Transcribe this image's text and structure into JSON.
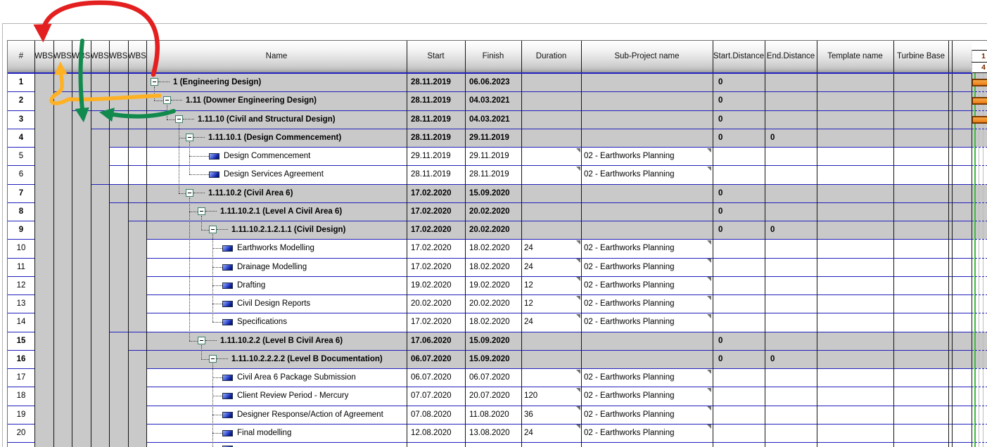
{
  "table": {
    "columns": [
      {
        "key": "num",
        "label": "#"
      },
      {
        "key": "wbs1",
        "label": "WBS"
      },
      {
        "key": "wbs2",
        "label": "WBS"
      },
      {
        "key": "wbs3",
        "label": "WBS"
      },
      {
        "key": "wbs4",
        "label": "WBS"
      },
      {
        "key": "wbs5",
        "label": "WBS"
      },
      {
        "key": "wbs6",
        "label": "WBS"
      },
      {
        "key": "name",
        "label": "Name"
      },
      {
        "key": "start",
        "label": "Start"
      },
      {
        "key": "finish",
        "label": "Finish"
      },
      {
        "key": "duration",
        "label": "Duration"
      },
      {
        "key": "subproject",
        "label": "Sub-Project name"
      },
      {
        "key": "start_distance",
        "label": "Start.Distance"
      },
      {
        "key": "end_distance",
        "label": "End.Distance"
      },
      {
        "key": "template_name",
        "label": "Template name"
      },
      {
        "key": "turbine_base",
        "label": "Turbine Base"
      },
      {
        "key": "gap1",
        "label": ""
      },
      {
        "key": "gap2",
        "label": ""
      }
    ],
    "rows": [
      {
        "num": "1",
        "type": "summary",
        "level": 1,
        "name": "1 (Engineering Design)",
        "start": "28.11.2019",
        "finish": "06.06.2023",
        "duration": "",
        "subproject": "",
        "start_distance": "0",
        "end_distance": "",
        "bar": true,
        "notes": false
      },
      {
        "num": "2",
        "type": "summary",
        "level": 2,
        "name": "1.11 (Downer Engineering Design)",
        "start": "28.11.2019",
        "finish": "04.03.2021",
        "duration": "",
        "subproject": "",
        "start_distance": "0",
        "end_distance": "",
        "bar": true,
        "notes": false
      },
      {
        "num": "3",
        "type": "summary",
        "level": 3,
        "name": "1.11.10 (Civil and Structural Design)",
        "start": "28.11.2019",
        "finish": "04.03.2021",
        "duration": "",
        "subproject": "",
        "start_distance": "0",
        "end_distance": "",
        "bar": true,
        "notes": false
      },
      {
        "num": "4",
        "type": "summary",
        "level": 4,
        "name": "1.11.10.1 (Design Commencement)",
        "start": "28.11.2019",
        "finish": "29.11.2019",
        "duration": "",
        "subproject": "",
        "start_distance": "0",
        "end_distance": "0",
        "bar": false,
        "notes": false
      },
      {
        "num": "5",
        "type": "task",
        "level": 5,
        "name": "Design Commencement",
        "start": "29.11.2019",
        "finish": "29.11.2019",
        "duration": "",
        "subproject": "02 - Earthworks Planning",
        "start_distance": "",
        "end_distance": "",
        "bar": false,
        "notes": true
      },
      {
        "num": "6",
        "type": "task",
        "level": 5,
        "name": "Design Services Agreement",
        "start": "28.11.2019",
        "finish": "28.11.2019",
        "duration": "",
        "subproject": "02 - Earthworks Planning",
        "start_distance": "",
        "end_distance": "",
        "bar": false,
        "notes": true
      },
      {
        "num": "7",
        "type": "summary",
        "level": 4,
        "name": "1.11.10.2 (Civil Area 6)",
        "start": "17.02.2020",
        "finish": "15.09.2020",
        "duration": "",
        "subproject": "",
        "start_distance": "0",
        "end_distance": "",
        "bar": false,
        "notes": false
      },
      {
        "num": "8",
        "type": "summary",
        "level": 5,
        "name": "1.11.10.2.1 (Level A Civil Area 6)",
        "start": "17.02.2020",
        "finish": "20.02.2020",
        "duration": "",
        "subproject": "",
        "start_distance": "0",
        "end_distance": "",
        "bar": false,
        "notes": false
      },
      {
        "num": "9",
        "type": "summary",
        "level": 6,
        "name": "1.11.10.2.1.2.1.1 (Civil Design)",
        "start": "17.02.2020",
        "finish": "20.02.2020",
        "duration": "",
        "subproject": "",
        "start_distance": "0",
        "end_distance": "0",
        "bar": false,
        "notes": false
      },
      {
        "num": "10",
        "type": "task",
        "level": 7,
        "name": "Earthworks Modelling",
        "start": "17.02.2020",
        "finish": "18.02.2020",
        "duration": "24",
        "subproject": "02 - Earthworks Planning",
        "start_distance": "",
        "end_distance": "",
        "bar": false,
        "notes": true
      },
      {
        "num": "11",
        "type": "task",
        "level": 7,
        "name": "Drainage Modelling",
        "start": "17.02.2020",
        "finish": "18.02.2020",
        "duration": "24",
        "subproject": "02 - Earthworks Planning",
        "start_distance": "",
        "end_distance": "",
        "bar": false,
        "notes": true
      },
      {
        "num": "12",
        "type": "task",
        "level": 7,
        "name": "Drafting",
        "start": "19.02.2020",
        "finish": "19.02.2020",
        "duration": "12",
        "subproject": "02 - Earthworks Planning",
        "start_distance": "",
        "end_distance": "",
        "bar": false,
        "notes": true
      },
      {
        "num": "13",
        "type": "task",
        "level": 7,
        "name": "Civil Design Reports",
        "start": "20.02.2020",
        "finish": "20.02.2020",
        "duration": "12",
        "subproject": "02 - Earthworks Planning",
        "start_distance": "",
        "end_distance": "",
        "bar": false,
        "notes": true
      },
      {
        "num": "14",
        "type": "task",
        "level": 7,
        "name": "Specifications",
        "start": "17.02.2020",
        "finish": "18.02.2020",
        "duration": "24",
        "subproject": "02 - Earthworks Planning",
        "start_distance": "",
        "end_distance": "",
        "bar": false,
        "notes": true
      },
      {
        "num": "15",
        "type": "summary",
        "level": 5,
        "name": "1.11.10.2.2 (Level B Civil Area 6)",
        "start": "17.06.2020",
        "finish": "15.09.2020",
        "duration": "",
        "subproject": "",
        "start_distance": "0",
        "end_distance": "",
        "bar": false,
        "notes": false
      },
      {
        "num": "16",
        "type": "summary",
        "level": 6,
        "name": "1.11.10.2.2.2.2 (Level B Documentation)",
        "start": "06.07.2020",
        "finish": "15.09.2020",
        "duration": "",
        "subproject": "",
        "start_distance": "0",
        "end_distance": "0",
        "bar": false,
        "notes": false
      },
      {
        "num": "17",
        "type": "task",
        "level": 7,
        "name": "Civil Area 6 Package Submission",
        "start": "06.07.2020",
        "finish": "06.07.2020",
        "duration": "",
        "subproject": "02 - Earthworks Planning",
        "start_distance": "",
        "end_distance": "",
        "bar": false,
        "notes": true
      },
      {
        "num": "18",
        "type": "task",
        "level": 7,
        "name": "Client Review Period - Mercury",
        "start": "07.07.2020",
        "finish": "20.07.2020",
        "duration": "120",
        "subproject": "02 - Earthworks Planning",
        "start_distance": "",
        "end_distance": "",
        "bar": false,
        "notes": true
      },
      {
        "num": "19",
        "type": "task",
        "level": 7,
        "name": "Designer Response/Action of Agreement",
        "start": "07.08.2020",
        "finish": "11.08.2020",
        "duration": "36",
        "subproject": "02 - Earthworks Planning",
        "start_distance": "",
        "end_distance": "",
        "bar": false,
        "notes": true
      },
      {
        "num": "20",
        "type": "task",
        "level": 7,
        "name": "Final modelling",
        "start": "12.08.2020",
        "finish": "13.08.2020",
        "duration": "24",
        "subproject": "02 - Earthworks Planning",
        "start_distance": "",
        "end_distance": "",
        "bar": false,
        "notes": true
      },
      {
        "num": "",
        "type": "task",
        "level": 7,
        "name": "",
        "start": "",
        "finish": "",
        "duration": "",
        "subproject": "",
        "start_distance": "",
        "end_distance": "",
        "bar": false,
        "notes": false,
        "partial": true
      }
    ]
  },
  "gantt": {
    "timeline_top": "1",
    "timeline_bottom": "4"
  },
  "annotations": {
    "red": "#e41f1f",
    "orange": "#ffb124",
    "green": "#128a4d"
  },
  "colors": {
    "summary_bg": "#c9c9c9",
    "row_line": "#2121bd",
    "bar_fill": "#f09130",
    "bar_border": "#7d3a00",
    "today_line": "#3dbb3d"
  }
}
